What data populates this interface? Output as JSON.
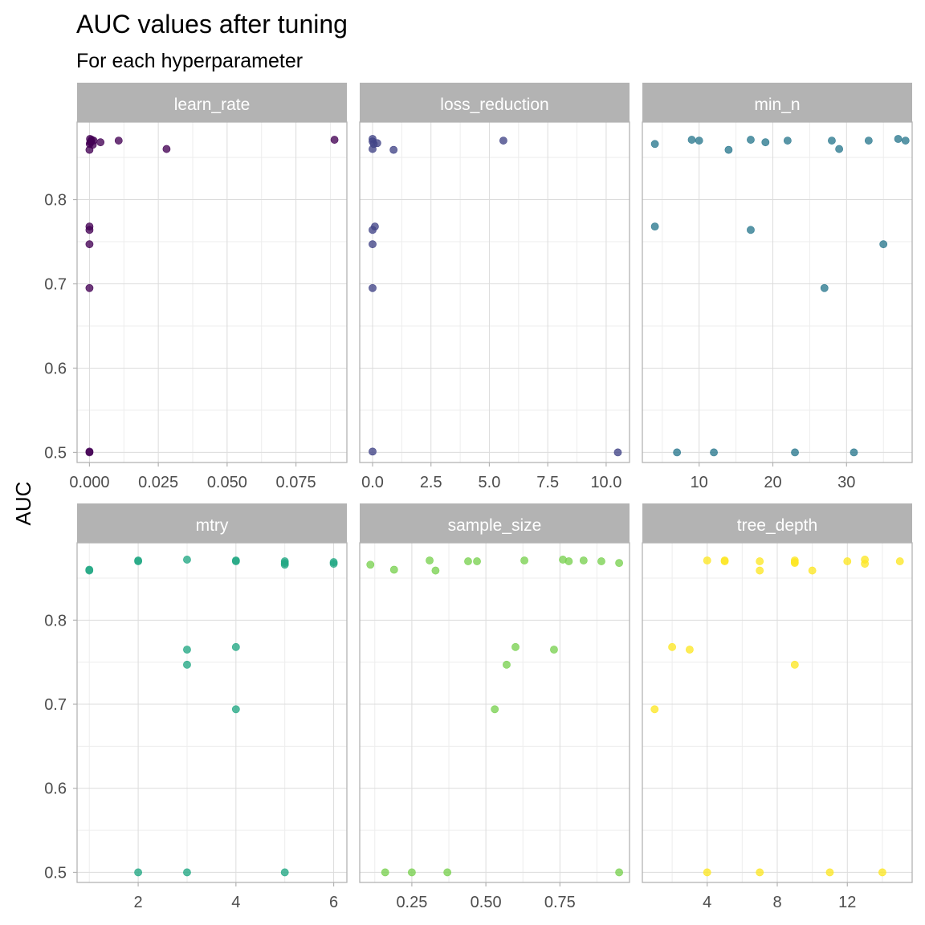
{
  "chart_data": {
    "type": "scatter",
    "title": "AUC values after tuning",
    "subtitle": "For each hyperparameter",
    "ylabel": "AUC",
    "xlabel": "",
    "ylim": [
      0.488,
      0.892
    ],
    "y_ticks": [
      0.5,
      0.6,
      0.7,
      0.8
    ],
    "y_tick_labels": [
      "0.5",
      "0.6",
      "0.7",
      "0.8"
    ],
    "grid": true,
    "facets": [
      {
        "name": "learn_rate",
        "color": "#440154",
        "xlim": [
          -0.0045,
          0.0935
        ],
        "x_ticks": [
          0.0,
          0.025,
          0.05,
          0.075
        ],
        "x_tick_labels": [
          "0.000",
          "0.025",
          "0.050",
          "0.075"
        ],
        "points": [
          [
            0.0002,
            0.872
          ],
          [
            0.0008,
            0.871
          ],
          [
            0.0015,
            0.87
          ],
          [
            0.0003,
            0.868
          ],
          [
            0.0001,
            0.866
          ],
          [
            0.0012,
            0.865
          ],
          [
            0.004,
            0.868
          ],
          [
            0.0005,
            0.869
          ],
          [
            0.0,
            0.859
          ],
          [
            0.0106,
            0.87
          ],
          [
            0.028,
            0.86
          ],
          [
            0.089,
            0.871
          ],
          [
            0.0,
            0.768
          ],
          [
            0.0,
            0.764
          ],
          [
            0.0,
            0.747
          ],
          [
            0.0,
            0.695
          ],
          [
            0.0,
            0.501
          ],
          [
            0.0,
            0.5
          ]
        ]
      },
      {
        "name": "loss_reduction",
        "color": "#414487",
        "xlim": [
          -0.55,
          11.0
        ],
        "x_ticks": [
          0,
          2.5,
          5,
          7.5,
          10
        ],
        "x_tick_labels": [
          "0.0",
          "2.5",
          "5.0",
          "7.5",
          "10.0"
        ],
        "points": [
          [
            0.0,
            0.872
          ],
          [
            0.0,
            0.869
          ],
          [
            0.05,
            0.866
          ],
          [
            0.2,
            0.867
          ],
          [
            0.0,
            0.86
          ],
          [
            0.9,
            0.859
          ],
          [
            5.6,
            0.87
          ],
          [
            0.1,
            0.768
          ],
          [
            0.0,
            0.764
          ],
          [
            0.0,
            0.747
          ],
          [
            0.0,
            0.695
          ],
          [
            0.0,
            0.501
          ],
          [
            10.5,
            0.5
          ]
        ]
      },
      {
        "name": "min_n",
        "color": "#2a788e",
        "xlim": [
          2.3,
          38.9
        ],
        "x_ticks": [
          10,
          20,
          30
        ],
        "x_tick_labels": [
          "10",
          "20",
          "30"
        ],
        "points": [
          [
            4,
            0.866
          ],
          [
            9,
            0.871
          ],
          [
            10,
            0.87
          ],
          [
            14,
            0.859
          ],
          [
            17,
            0.871
          ],
          [
            19,
            0.868
          ],
          [
            22,
            0.87
          ],
          [
            28,
            0.87
          ],
          [
            29,
            0.86
          ],
          [
            33,
            0.87
          ],
          [
            37,
            0.872
          ],
          [
            38,
            0.87
          ],
          [
            4,
            0.768
          ],
          [
            17,
            0.764
          ],
          [
            35,
            0.747
          ],
          [
            27,
            0.695
          ],
          [
            7,
            0.5
          ],
          [
            12,
            0.5
          ],
          [
            23,
            0.5
          ],
          [
            31,
            0.5
          ]
        ]
      },
      {
        "name": "mtry",
        "color": "#22a884",
        "xlim": [
          0.75,
          6.27
        ],
        "x_ticks": [
          2,
          4,
          6
        ],
        "x_tick_labels": [
          "2",
          "4",
          "6"
        ],
        "points": [
          [
            1,
            0.86
          ],
          [
            1,
            0.859
          ],
          [
            2,
            0.871
          ],
          [
            2,
            0.87
          ],
          [
            3,
            0.872
          ],
          [
            4,
            0.871
          ],
          [
            4,
            0.87
          ],
          [
            5,
            0.87
          ],
          [
            5,
            0.866
          ],
          [
            5,
            0.868
          ],
          [
            6,
            0.869
          ],
          [
            6,
            0.867
          ],
          [
            3,
            0.765
          ],
          [
            3,
            0.747
          ],
          [
            4,
            0.768
          ],
          [
            4,
            0.694
          ],
          [
            2,
            0.5
          ],
          [
            3,
            0.5
          ],
          [
            5,
            0.5
          ]
        ]
      },
      {
        "name": "sample_size",
        "color": "#7ad151",
        "xlim": [
          0.074,
          0.985
        ],
        "x_ticks": [
          0.25,
          0.5,
          0.75
        ],
        "x_tick_labels": [
          "0.25",
          "0.50",
          "0.75"
        ],
        "points": [
          [
            0.11,
            0.866
          ],
          [
            0.19,
            0.86
          ],
          [
            0.31,
            0.871
          ],
          [
            0.33,
            0.859
          ],
          [
            0.44,
            0.87
          ],
          [
            0.47,
            0.87
          ],
          [
            0.63,
            0.871
          ],
          [
            0.76,
            0.872
          ],
          [
            0.78,
            0.87
          ],
          [
            0.83,
            0.871
          ],
          [
            0.89,
            0.87
          ],
          [
            0.95,
            0.868
          ],
          [
            0.6,
            0.768
          ],
          [
            0.73,
            0.765
          ],
          [
            0.57,
            0.747
          ],
          [
            0.53,
            0.694
          ],
          [
            0.16,
            0.5
          ],
          [
            0.25,
            0.5
          ],
          [
            0.37,
            0.5
          ],
          [
            0.95,
            0.5
          ]
        ]
      },
      {
        "name": "tree_depth",
        "color": "#fde725",
        "xlim": [
          0.3,
          15.7
        ],
        "x_ticks": [
          4,
          8,
          12
        ],
        "x_tick_labels": [
          "4",
          "8",
          "12"
        ],
        "points": [
          [
            4,
            0.871
          ],
          [
            5,
            0.871
          ],
          [
            5,
            0.87
          ],
          [
            7,
            0.87
          ],
          [
            7,
            0.859
          ],
          [
            9,
            0.871
          ],
          [
            9,
            0.869
          ],
          [
            9,
            0.868
          ],
          [
            10,
            0.859
          ],
          [
            12,
            0.87
          ],
          [
            13,
            0.872
          ],
          [
            13,
            0.867
          ],
          [
            15,
            0.87
          ],
          [
            2,
            0.768
          ],
          [
            3,
            0.765
          ],
          [
            9,
            0.747
          ],
          [
            1,
            0.694
          ],
          [
            4,
            0.5
          ],
          [
            7,
            0.5
          ],
          [
            11,
            0.5
          ],
          [
            14,
            0.5
          ]
        ]
      }
    ]
  }
}
